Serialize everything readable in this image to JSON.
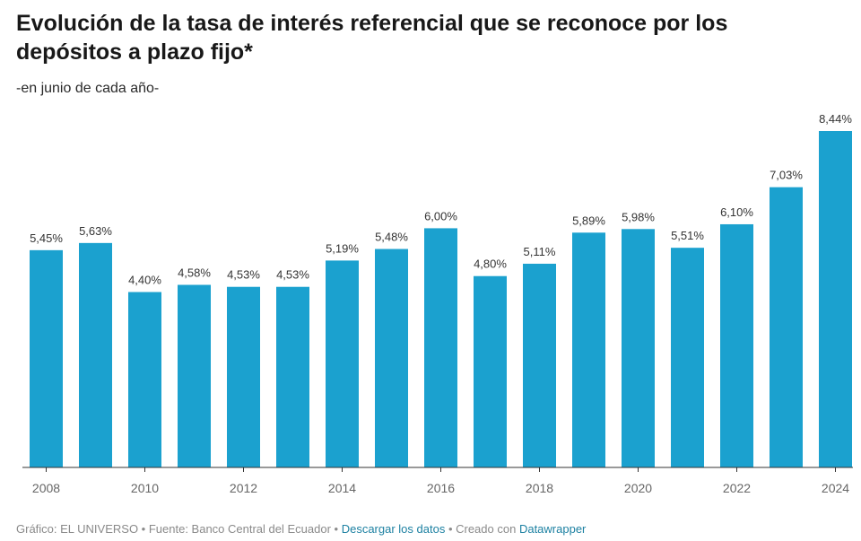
{
  "header": {
    "title": "Evolución de la tasa de interés referencial que se reconoce por los depósitos a plazo fijo*",
    "subtitle": "-en junio de cada año-"
  },
  "footer": {
    "credit": "Gráfico: EL UNIVERSO",
    "separator": " • ",
    "source": "Fuente: Banco Central del Ecuador",
    "download_link": "Descargar los datos",
    "created_with": "Creado con",
    "tool_link": "Datawrapper"
  },
  "colors": {
    "bar": "#1ba1cf",
    "axis": "#333333",
    "label": "#333333",
    "tick": "#666666"
  },
  "chart_data": {
    "type": "bar",
    "title": "Evolución de la tasa de interés referencial que se reconoce por los depósitos a plazo fijo*",
    "subtitle": "-en junio de cada año-",
    "xlabel": "",
    "ylabel": "",
    "grid": false,
    "ylim": [
      0,
      8.44
    ],
    "categories": [
      "2008",
      "2009",
      "2010",
      "2011",
      "2012",
      "2013",
      "2014",
      "2015",
      "2016",
      "2017",
      "2018",
      "2019",
      "2020",
      "2021",
      "2022",
      "2023",
      "2024"
    ],
    "values": [
      5.45,
      5.63,
      4.4,
      4.58,
      4.53,
      4.53,
      5.19,
      5.48,
      6.0,
      4.8,
      5.11,
      5.89,
      5.98,
      5.51,
      6.1,
      7.03,
      8.44
    ],
    "value_labels": [
      "5,45%",
      "5,63%",
      "4,40%",
      "4,58%",
      "4,53%",
      "4,53%",
      "5,19%",
      "5,48%",
      "6,00%",
      "4,80%",
      "5,11%",
      "5,89%",
      "5,98%",
      "5,51%",
      "6,10%",
      "7,03%",
      "8,44%"
    ],
    "tick_labels": [
      "2008",
      "",
      "2010",
      "",
      "2012",
      "",
      "2014",
      "",
      "2016",
      "",
      "2018",
      "",
      "2020",
      "",
      "2022",
      "",
      "2024"
    ]
  }
}
